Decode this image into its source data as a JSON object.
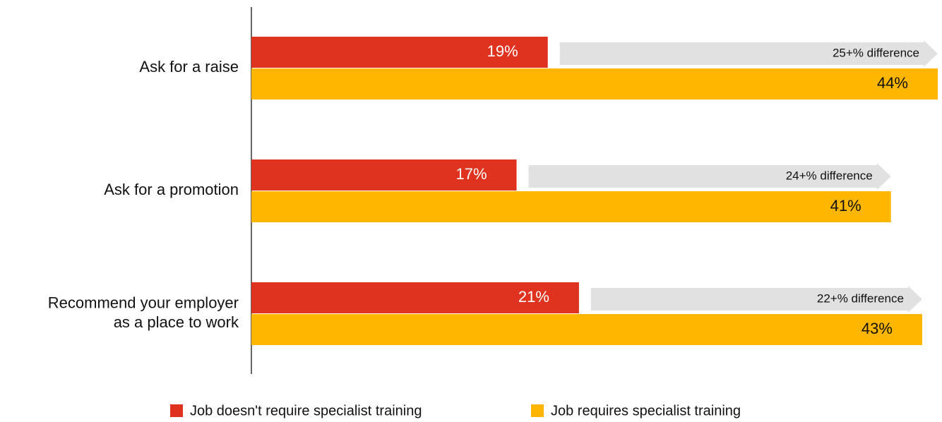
{
  "chart_data": {
    "type": "bar",
    "orientation": "horizontal",
    "categories": [
      "Ask for a raise",
      "Ask for a promotion",
      "Recommend your employer\nas a place to work"
    ],
    "series": [
      {
        "name": "Job doesn't require specialist training",
        "color": "#e0331f",
        "values": [
          19,
          17,
          21
        ],
        "value_labels": [
          "19%",
          "17%",
          "21%"
        ]
      },
      {
        "name": "Job requires specialist training",
        "color": "#ffb600",
        "values": [
          44,
          41,
          43
        ],
        "value_labels": [
          "44%",
          "41%",
          "43%"
        ]
      }
    ],
    "annotations": [
      "25+% difference",
      "24+% difference",
      "22+% difference"
    ],
    "annotation_color": "#e1e1e1",
    "legend": "bottom"
  }
}
